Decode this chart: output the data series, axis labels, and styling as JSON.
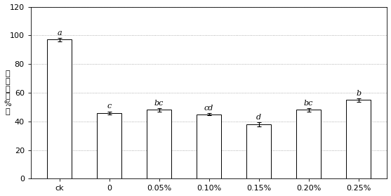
{
  "categories": [
    "ck",
    "0",
    "0.05%",
    "0.10%",
    "0.15%",
    "0.20%",
    "0.25%"
  ],
  "values": [
    97,
    46,
    48,
    45,
    38,
    48,
    55
  ],
  "errors": [
    1.2,
    1.0,
    1.2,
    0.8,
    1.5,
    1.0,
    1.2
  ],
  "letters": [
    "a",
    "c",
    "bc",
    "cd",
    "d",
    "bc",
    "b"
  ],
  "ylabel_chars": [
    "腐",
    "烂",
    "率",
    "（",
    "%",
    "）"
  ],
  "ylim": [
    0,
    120
  ],
  "yticks": [
    0,
    20,
    40,
    60,
    80,
    100,
    120
  ],
  "bar_color": "#ffffff",
  "bar_edgecolor": "#000000",
  "bar_width": 0.5,
  "grid_color": "#999999",
  "letter_fontsize": 8,
  "tick_fontsize": 8,
  "ylabel_fontsize": 8
}
